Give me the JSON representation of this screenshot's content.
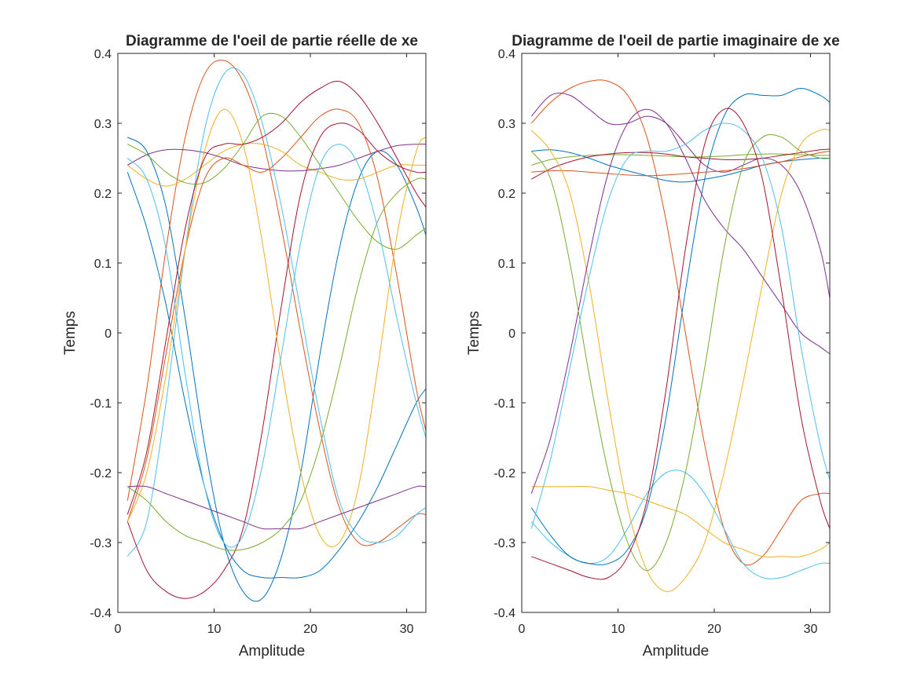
{
  "figure": {
    "background": "#ffffff"
  },
  "palette": [
    "#0072BD",
    "#D95319",
    "#EDB120",
    "#7E2F8E",
    "#77AC30",
    "#4DBEEE",
    "#A2142F"
  ],
  "chart_data": [
    {
      "type": "line",
      "title": "Diagramme de l'oeil de partie réelle de xe",
      "xlabel": "Amplitude",
      "ylabel": "Temps",
      "xlim": [
        0,
        32
      ],
      "ylim": [
        -0.4,
        0.4
      ],
      "xticks": [
        0,
        10,
        20,
        30
      ],
      "yticks": [
        -0.4,
        -0.3,
        -0.2,
        -0.1,
        0,
        0.1,
        0.2,
        0.3,
        0.4
      ],
      "xtick_labels": [
        "0",
        "10",
        "20",
        "30"
      ],
      "ytick_labels": [
        "-0.4",
        "-0.3",
        "-0.2",
        "-0.1",
        "0",
        "0.1",
        "0.2",
        "0.3",
        "0.4"
      ],
      "grid": false,
      "x": [
        1,
        3,
        5,
        7,
        9,
        11,
        13,
        15,
        17,
        19,
        21,
        23,
        25,
        27,
        29,
        31,
        32
      ],
      "series": [
        {
          "values": [
            0.28,
            0.26,
            0.18,
            0.02,
            -0.16,
            -0.3,
            -0.37,
            -0.38,
            -0.32,
            -0.2,
            -0.03,
            0.12,
            0.22,
            0.26,
            0.24,
            0.18,
            0.14
          ],
          "color": "#0072BD"
        },
        {
          "values": [
            -0.24,
            -0.08,
            0.12,
            0.28,
            0.37,
            0.39,
            0.36,
            0.28,
            0.15,
            0.0,
            -0.14,
            -0.25,
            -0.3,
            -0.3,
            -0.28,
            -0.26,
            -0.26
          ],
          "color": "#D95319"
        },
        {
          "values": [
            0.24,
            0.22,
            0.21,
            0.22,
            0.24,
            0.26,
            0.27,
            0.27,
            0.26,
            0.24,
            0.23,
            0.22,
            0.22,
            0.23,
            0.24,
            0.24,
            0.24
          ],
          "color": "#EDB120"
        },
        {
          "values": [
            0.24,
            0.255,
            0.262,
            0.262,
            0.258,
            0.25,
            0.24,
            0.235,
            0.232,
            0.232,
            0.235,
            0.24,
            0.25,
            0.26,
            0.268,
            0.27,
            0.27
          ],
          "color": "#7E2F8E"
        },
        {
          "values": [
            0.27,
            0.255,
            0.23,
            0.215,
            0.215,
            0.235,
            0.27,
            0.31,
            0.31,
            0.28,
            0.24,
            0.2,
            0.16,
            0.13,
            0.12,
            0.14,
            0.15
          ],
          "color": "#77AC30"
        },
        {
          "values": [
            -0.32,
            -0.27,
            -0.1,
            0.12,
            0.29,
            0.37,
            0.37,
            0.3,
            0.18,
            0.03,
            -0.12,
            -0.24,
            -0.29,
            -0.3,
            -0.29,
            -0.26,
            -0.25
          ],
          "color": "#4DBEEE"
        },
        {
          "values": [
            -0.27,
            -0.34,
            -0.37,
            -0.38,
            -0.37,
            -0.34,
            -0.28,
            -0.14,
            0.04,
            0.2,
            0.28,
            0.3,
            0.29,
            0.26,
            0.24,
            0.23,
            0.23
          ],
          "color": "#A2142F"
        },
        {
          "values": [
            0.23,
            0.15,
            0.04,
            -0.1,
            -0.22,
            -0.3,
            -0.34,
            -0.35,
            -0.35,
            -0.35,
            -0.34,
            -0.31,
            -0.27,
            -0.22,
            -0.16,
            -0.1,
            -0.08
          ],
          "color": "#0072BD"
        },
        {
          "values": [
            -0.27,
            -0.18,
            -0.03,
            0.12,
            0.22,
            0.25,
            0.24,
            0.23,
            0.25,
            0.28,
            0.31,
            0.32,
            0.3,
            0.22,
            0.08,
            -0.08,
            -0.14
          ],
          "color": "#D95319"
        },
        {
          "values": [
            -0.27,
            -0.2,
            -0.06,
            0.12,
            0.26,
            0.32,
            0.27,
            0.13,
            -0.05,
            -0.2,
            -0.29,
            -0.3,
            -0.22,
            -0.05,
            0.14,
            0.26,
            0.28
          ],
          "color": "#EDB120"
        },
        {
          "values": [
            -0.22,
            -0.22,
            -0.23,
            -0.24,
            -0.25,
            -0.26,
            -0.27,
            -0.28,
            -0.28,
            -0.28,
            -0.27,
            -0.26,
            -0.25,
            -0.24,
            -0.23,
            -0.22,
            -0.22
          ],
          "color": "#7E2F8E"
        },
        {
          "values": [
            -0.22,
            -0.24,
            -0.27,
            -0.29,
            -0.3,
            -0.31,
            -0.31,
            -0.3,
            -0.28,
            -0.24,
            -0.16,
            -0.05,
            0.07,
            0.16,
            0.2,
            0.22,
            0.22
          ],
          "color": "#77AC30"
        },
        {
          "values": [
            0.25,
            0.22,
            0.12,
            -0.06,
            -0.22,
            -0.3,
            -0.29,
            -0.19,
            -0.03,
            0.13,
            0.24,
            0.27,
            0.24,
            0.15,
            0.02,
            -0.1,
            -0.15
          ],
          "color": "#4DBEEE"
        },
        {
          "values": [
            -0.26,
            -0.17,
            -0.01,
            0.15,
            0.25,
            0.27,
            0.27,
            0.28,
            0.3,
            0.33,
            0.35,
            0.36,
            0.34,
            0.3,
            0.25,
            0.2,
            0.18
          ],
          "color": "#A2142F"
        }
      ]
    },
    {
      "type": "line",
      "title": "Diagramme de l'oeil de partie imaginaire de xe",
      "xlabel": "Amplitude",
      "ylabel": "Temps",
      "xlim": [
        0,
        32
      ],
      "ylim": [
        -0.4,
        0.4
      ],
      "xticks": [
        0,
        10,
        20,
        30
      ],
      "yticks": [
        -0.4,
        -0.3,
        -0.2,
        -0.1,
        0,
        0.1,
        0.2,
        0.3,
        0.4
      ],
      "xtick_labels": [
        "0",
        "10",
        "20",
        "30"
      ],
      "ytick_labels": [
        "-0.4",
        "-0.3",
        "-0.2",
        "-0.1",
        "0",
        "0.1",
        "0.2",
        "0.3",
        "0.4"
      ],
      "grid": false,
      "x": [
        1,
        3,
        5,
        7,
        9,
        11,
        13,
        15,
        17,
        19,
        21,
        23,
        25,
        27,
        29,
        31,
        32
      ],
      "series": [
        {
          "values": [
            0.26,
            0.262,
            0.258,
            0.25,
            0.24,
            0.232,
            0.225,
            0.218,
            0.216,
            0.22,
            0.225,
            0.232,
            0.24,
            0.245,
            0.248,
            0.25,
            0.25
          ],
          "color": "#0072BD"
        },
        {
          "values": [
            0.3,
            0.33,
            0.35,
            0.36,
            0.36,
            0.34,
            0.28,
            0.16,
            0.0,
            -0.16,
            -0.28,
            -0.33,
            -0.32,
            -0.28,
            -0.24,
            -0.23,
            -0.23
          ],
          "color": "#D95319"
        },
        {
          "values": [
            -0.22,
            -0.22,
            -0.22,
            -0.22,
            -0.225,
            -0.23,
            -0.24,
            -0.25,
            -0.26,
            -0.28,
            -0.3,
            -0.31,
            -0.32,
            -0.32,
            -0.32,
            -0.31,
            -0.3
          ],
          "color": "#EDB120"
        },
        {
          "values": [
            0.31,
            0.34,
            0.34,
            0.32,
            0.3,
            0.3,
            0.31,
            0.3,
            0.27,
            0.24,
            0.23,
            0.24,
            0.25,
            0.24,
            0.2,
            0.12,
            0.05
          ],
          "color": "#7E2F8E"
        },
        {
          "values": [
            0.24,
            0.248,
            0.252,
            0.254,
            0.255,
            0.255,
            0.254,
            0.253,
            0.252,
            0.252,
            0.253,
            0.255,
            0.256,
            0.256,
            0.255,
            0.254,
            0.254
          ],
          "color": "#77AC30"
        },
        {
          "values": [
            -0.27,
            -0.3,
            -0.32,
            -0.33,
            -0.32,
            -0.28,
            -0.23,
            -0.2,
            -0.2,
            -0.23,
            -0.28,
            -0.33,
            -0.35,
            -0.35,
            -0.34,
            -0.33,
            -0.33
          ],
          "color": "#4DBEEE"
        },
        {
          "values": [
            0.22,
            0.235,
            0.245,
            0.252,
            0.256,
            0.258,
            0.258,
            0.256,
            0.252,
            0.25,
            0.248,
            0.248,
            0.25,
            0.254,
            0.258,
            0.262,
            0.263
          ],
          "color": "#A2142F"
        },
        {
          "values": [
            -0.25,
            -0.29,
            -0.32,
            -0.33,
            -0.33,
            -0.31,
            -0.25,
            -0.12,
            0.06,
            0.22,
            0.31,
            0.34,
            0.34,
            0.34,
            0.35,
            0.34,
            0.33
          ],
          "color": "#0072BD"
        },
        {
          "values": [
            0.23,
            0.232,
            0.232,
            0.23,
            0.228,
            0.226,
            0.225,
            0.226,
            0.228,
            0.23,
            0.232,
            0.235,
            0.24,
            0.245,
            0.252,
            0.258,
            0.26
          ],
          "color": "#D95319"
        },
        {
          "values": [
            0.29,
            0.26,
            0.2,
            0.07,
            -0.1,
            -0.25,
            -0.34,
            -0.37,
            -0.35,
            -0.3,
            -0.2,
            -0.07,
            0.07,
            0.2,
            0.27,
            0.29,
            0.29
          ],
          "color": "#EDB120"
        },
        {
          "values": [
            -0.23,
            -0.15,
            -0.03,
            0.11,
            0.23,
            0.3,
            0.32,
            0.3,
            0.25,
            0.19,
            0.15,
            0.12,
            0.08,
            0.04,
            0.0,
            -0.02,
            -0.03
          ],
          "color": "#7E2F8E"
        },
        {
          "values": [
            0.26,
            0.22,
            0.1,
            -0.06,
            -0.2,
            -0.3,
            -0.34,
            -0.3,
            -0.2,
            -0.05,
            0.12,
            0.24,
            0.28,
            0.28,
            0.26,
            0.25,
            0.25
          ],
          "color": "#77AC30"
        },
        {
          "values": [
            -0.28,
            -0.18,
            -0.05,
            0.08,
            0.19,
            0.25,
            0.26,
            0.26,
            0.27,
            0.29,
            0.3,
            0.29,
            0.25,
            0.15,
            -0.02,
            -0.16,
            -0.21
          ],
          "color": "#4DBEEE"
        },
        {
          "values": [
            -0.32,
            -0.33,
            -0.34,
            -0.35,
            -0.35,
            -0.32,
            -0.24,
            -0.08,
            0.12,
            0.27,
            0.32,
            0.3,
            0.22,
            0.06,
            -0.12,
            -0.24,
            -0.28
          ],
          "color": "#A2142F"
        }
      ]
    }
  ]
}
